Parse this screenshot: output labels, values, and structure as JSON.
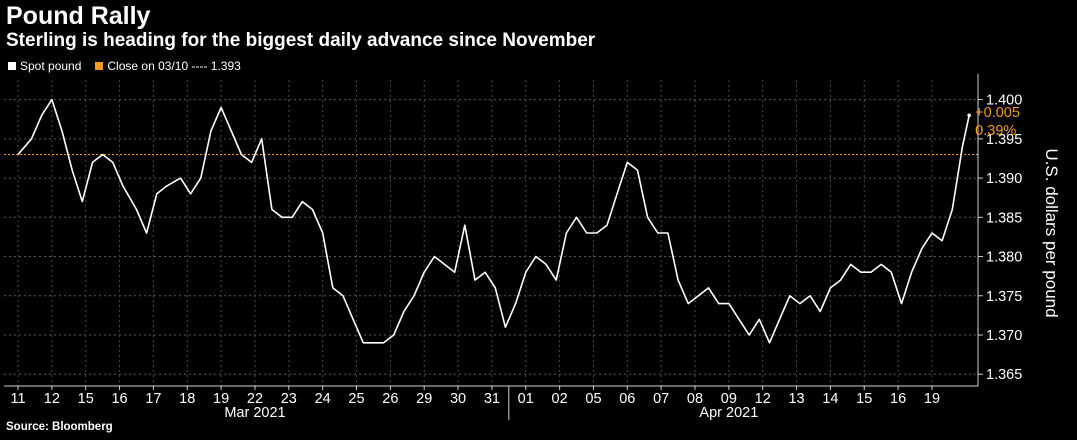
{
  "header": {
    "title": "Pound Rally",
    "subtitle": "Sterling is heading for the biggest daily advance since November"
  },
  "legend": {
    "items": [
      {
        "label": "Spot pound",
        "color": "#ffffff"
      },
      {
        "label": "Close on 03/10 ---- 1.393",
        "color": "#f39c1f"
      }
    ]
  },
  "footer": {
    "source": "Source: Bloomberg"
  },
  "annotation": {
    "change_abs": "+0.005",
    "change_pct": "0.39%"
  },
  "chart_data": {
    "type": "line",
    "ylabel": "U.S. dollars per pound",
    "ylim": [
      1.3635,
      1.4025
    ],
    "yticks": [
      1.365,
      1.37,
      1.375,
      1.38,
      1.385,
      1.39,
      1.395,
      1.4
    ],
    "ytick_labels": [
      "1.365",
      "1.370",
      "1.375",
      "1.380",
      "1.385",
      "1.390",
      "1.395",
      "1.400"
    ],
    "x_categories": [
      "11",
      "12",
      "15",
      "16",
      "17",
      "18",
      "19",
      "22",
      "23",
      "24",
      "25",
      "26",
      "29",
      "30",
      "31",
      "01",
      "02",
      "05",
      "06",
      "07",
      "08",
      "09",
      "12",
      "13",
      "14",
      "15",
      "16",
      "19"
    ],
    "month_labels": [
      {
        "label": "Mar 2021",
        "from_index": 0,
        "to_index": 14
      },
      {
        "label": "Apr 2021",
        "from_index": 15,
        "to_index": 27
      }
    ],
    "reference_line": {
      "value": 1.393,
      "color": "#f39c1f"
    },
    "series": [
      {
        "name": "Spot pound",
        "color": "#ffffff",
        "points": [
          [
            0.0,
            1.393
          ],
          [
            0.4,
            1.395
          ],
          [
            0.7,
            1.398
          ],
          [
            1.0,
            1.4
          ],
          [
            1.3,
            1.396
          ],
          [
            1.6,
            1.391
          ],
          [
            1.9,
            1.387
          ],
          [
            2.2,
            1.392
          ],
          [
            2.5,
            1.393
          ],
          [
            2.8,
            1.392
          ],
          [
            3.1,
            1.389
          ],
          [
            3.5,
            1.386
          ],
          [
            3.8,
            1.383
          ],
          [
            4.1,
            1.388
          ],
          [
            4.4,
            1.389
          ],
          [
            4.8,
            1.39
          ],
          [
            5.1,
            1.388
          ],
          [
            5.4,
            1.39
          ],
          [
            5.7,
            1.396
          ],
          [
            6.0,
            1.399
          ],
          [
            6.3,
            1.396
          ],
          [
            6.6,
            1.393
          ],
          [
            6.9,
            1.392
          ],
          [
            7.2,
            1.395
          ],
          [
            7.5,
            1.386
          ],
          [
            7.8,
            1.385
          ],
          [
            8.1,
            1.385
          ],
          [
            8.4,
            1.387
          ],
          [
            8.7,
            1.386
          ],
          [
            9.0,
            1.383
          ],
          [
            9.3,
            1.376
          ],
          [
            9.6,
            1.375
          ],
          [
            9.9,
            1.372
          ],
          [
            10.2,
            1.369
          ],
          [
            10.5,
            1.369
          ],
          [
            10.8,
            1.369
          ],
          [
            11.1,
            1.37
          ],
          [
            11.4,
            1.373
          ],
          [
            11.7,
            1.375
          ],
          [
            12.0,
            1.378
          ],
          [
            12.3,
            1.38
          ],
          [
            12.6,
            1.379
          ],
          [
            12.9,
            1.378
          ],
          [
            13.2,
            1.384
          ],
          [
            13.5,
            1.377
          ],
          [
            13.8,
            1.378
          ],
          [
            14.1,
            1.376
          ],
          [
            14.4,
            1.371
          ],
          [
            14.7,
            1.374
          ],
          [
            15.0,
            1.378
          ],
          [
            15.3,
            1.38
          ],
          [
            15.6,
            1.379
          ],
          [
            15.9,
            1.377
          ],
          [
            16.2,
            1.383
          ],
          [
            16.5,
            1.385
          ],
          [
            16.8,
            1.383
          ],
          [
            17.1,
            1.383
          ],
          [
            17.4,
            1.384
          ],
          [
            17.7,
            1.388
          ],
          [
            18.0,
            1.392
          ],
          [
            18.3,
            1.391
          ],
          [
            18.6,
            1.385
          ],
          [
            18.9,
            1.383
          ],
          [
            19.2,
            1.383
          ],
          [
            19.5,
            1.377
          ],
          [
            19.8,
            1.374
          ],
          [
            20.1,
            1.375
          ],
          [
            20.4,
            1.376
          ],
          [
            20.7,
            1.374
          ],
          [
            21.0,
            1.374
          ],
          [
            21.3,
            1.372
          ],
          [
            21.6,
            1.37
          ],
          [
            21.9,
            1.372
          ],
          [
            22.2,
            1.369
          ],
          [
            22.5,
            1.372
          ],
          [
            22.8,
            1.375
          ],
          [
            23.1,
            1.374
          ],
          [
            23.4,
            1.375
          ],
          [
            23.7,
            1.373
          ],
          [
            24.0,
            1.376
          ],
          [
            24.3,
            1.377
          ],
          [
            24.6,
            1.379
          ],
          [
            24.9,
            1.378
          ],
          [
            25.2,
            1.378
          ],
          [
            25.5,
            1.379
          ],
          [
            25.8,
            1.378
          ],
          [
            26.1,
            1.374
          ],
          [
            26.4,
            1.378
          ],
          [
            26.7,
            1.381
          ],
          [
            27.0,
            1.383
          ],
          [
            27.3,
            1.382
          ],
          [
            27.6,
            1.386
          ],
          [
            27.9,
            1.394
          ],
          [
            28.1,
            1.398
          ]
        ]
      }
    ]
  }
}
